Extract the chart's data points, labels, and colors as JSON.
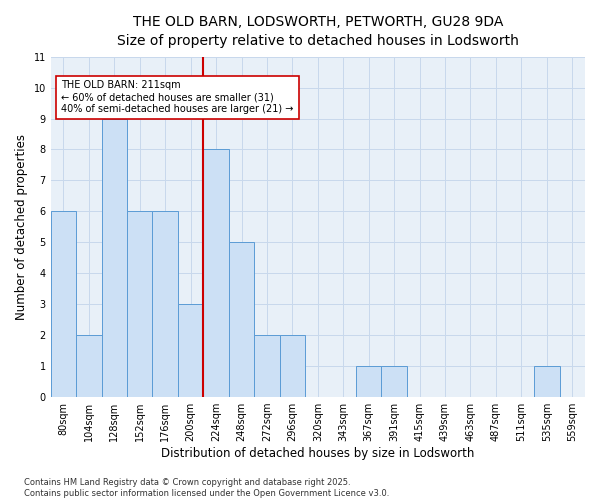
{
  "title_line1": "THE OLD BARN, LODSWORTH, PETWORTH, GU28 9DA",
  "title_line2": "Size of property relative to detached houses in Lodsworth",
  "xlabel": "Distribution of detached houses by size in Lodsworth",
  "ylabel": "Number of detached properties",
  "bins": [
    "80sqm",
    "104sqm",
    "128sqm",
    "152sqm",
    "176sqm",
    "200sqm",
    "224sqm",
    "248sqm",
    "272sqm",
    "296sqm",
    "320sqm",
    "343sqm",
    "367sqm",
    "391sqm",
    "415sqm",
    "439sqm",
    "463sqm",
    "487sqm",
    "511sqm",
    "535sqm",
    "559sqm"
  ],
  "values": [
    6,
    2,
    9,
    6,
    6,
    3,
    8,
    5,
    2,
    2,
    0,
    0,
    1,
    1,
    0,
    0,
    0,
    0,
    0,
    1,
    0
  ],
  "bar_color": "#cce0f5",
  "bar_edge_color": "#5b9bd5",
  "red_line_color": "#cc0000",
  "annotation_text": "THE OLD BARN: 211sqm\n← 60% of detached houses are smaller (31)\n40% of semi-detached houses are larger (21) →",
  "annotation_box_color": "#ffffff",
  "annotation_box_edge_color": "#cc0000",
  "ylim": [
    0,
    11
  ],
  "yticks": [
    0,
    1,
    2,
    3,
    4,
    5,
    6,
    7,
    8,
    9,
    10,
    11
  ],
  "grid_color": "#c8d8ec",
  "background_color": "#e8f0f8",
  "footnote": "Contains HM Land Registry data © Crown copyright and database right 2025.\nContains public sector information licensed under the Open Government Licence v3.0.",
  "title_fontsize": 10,
  "subtitle_fontsize": 9,
  "label_fontsize": 8.5,
  "tick_fontsize": 7,
  "annotation_fontsize": 7
}
